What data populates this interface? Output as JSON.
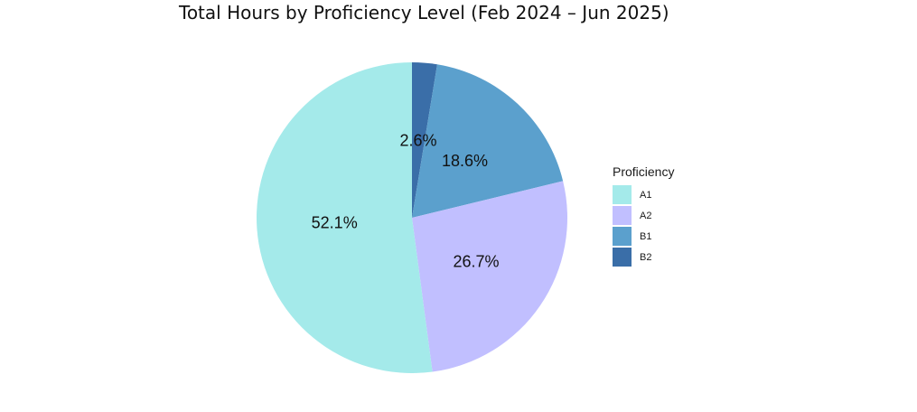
{
  "chart_data": {
    "type": "pie",
    "title": "Total Hours by Proficiency Level (Feb 2024 – Jun 2025)",
    "legend_title": "Proficiency",
    "legend_position": "right",
    "slices": [
      {
        "label": "A1",
        "value": 52.1,
        "display": "52.1%",
        "color": "#a4eaea"
      },
      {
        "label": "A2",
        "value": 26.7,
        "display": "26.7%",
        "color": "#c1bfff"
      },
      {
        "label": "B1",
        "value": 18.6,
        "display": "18.6%",
        "color": "#5ba0cd"
      },
      {
        "label": "B2",
        "value": 2.6,
        "display": "2.6%",
        "color": "#3a6ea8"
      }
    ]
  }
}
